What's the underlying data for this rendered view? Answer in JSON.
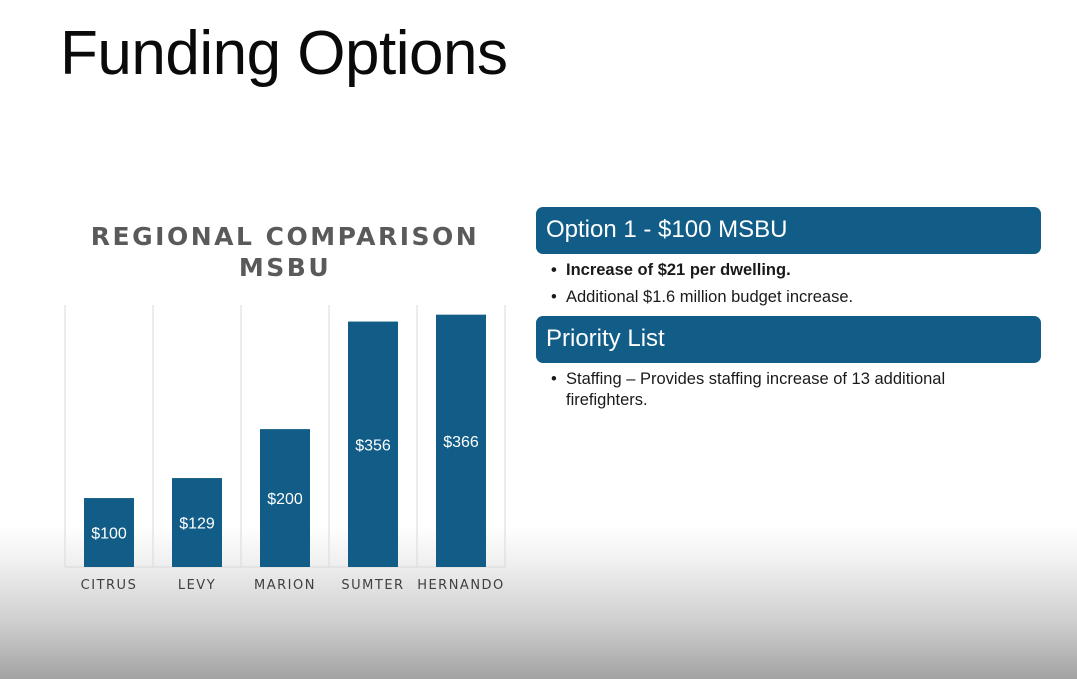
{
  "slide": {
    "title": "Funding Options"
  },
  "chart_data": {
    "type": "bar",
    "title_line1": "REGIONAL COMPARISON",
    "title_line2": "MSBU",
    "categories": [
      "CITRUS",
      "LEVY",
      "MARION",
      "SUMTER",
      "HERNANDO"
    ],
    "values": [
      100,
      129,
      200,
      356,
      366
    ],
    "data_labels": [
      "$100",
      "$129",
      "$200",
      "$356",
      "$366"
    ],
    "ylim": [
      0,
      380
    ],
    "grid": "vertical category separators",
    "legend": "none",
    "bar_color": "#115d87",
    "label_color": "#ffffff"
  },
  "option1": {
    "header": "Option 1 - $100 MSBU",
    "bullets": [
      {
        "text": "Increase of $21 per dwelling.",
        "bold": true
      },
      {
        "text": "Additional $1.6 million budget increase.",
        "bold": false
      }
    ]
  },
  "priority": {
    "header": "Priority List",
    "bullets": [
      {
        "text": "Staffing – Provides staffing increase of 13 additional firefighters.",
        "bold": false
      }
    ]
  },
  "colors": {
    "accent": "#115d87",
    "grid": "#d9d9d9",
    "axis_text": "#404040"
  }
}
